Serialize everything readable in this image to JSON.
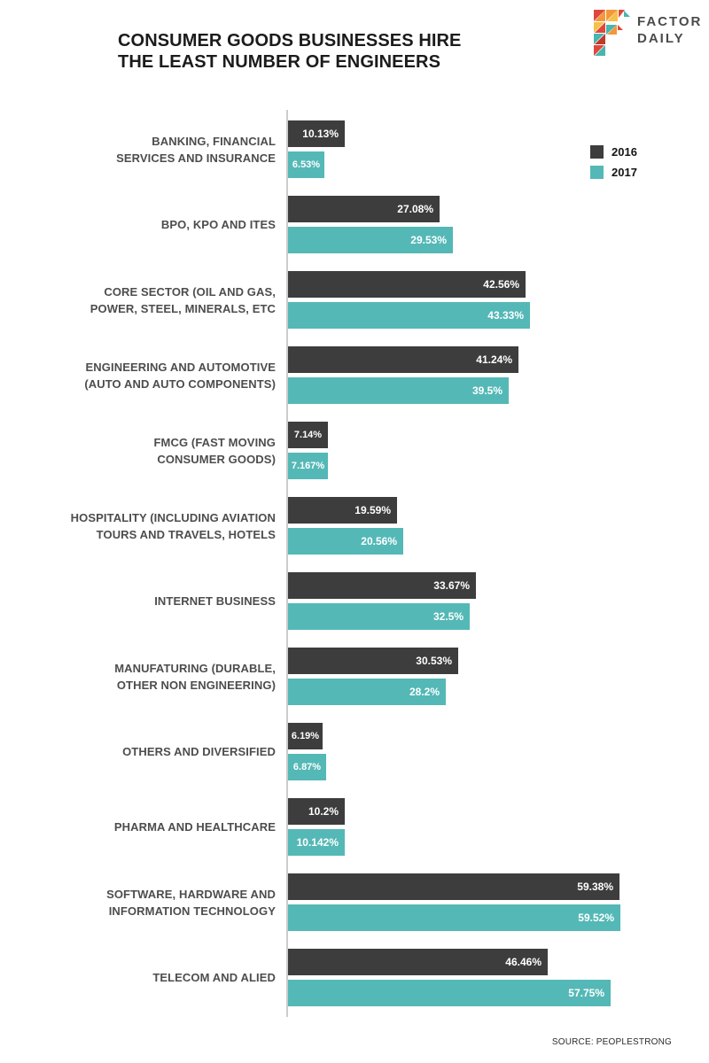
{
  "header": {
    "title_line1": "CONSUMER GOODS BUSINESSES HIRE",
    "title_line2": "THE LEAST NUMBER OF ENGINEERS",
    "logo_line1": "FACTOR",
    "logo_line2": "DAILY"
  },
  "legend": {
    "items": [
      {
        "label": "2016",
        "color": "#3d3d3d"
      },
      {
        "label": "2017",
        "color": "#54b8b6"
      }
    ]
  },
  "chart_data": {
    "type": "bar",
    "orientation": "horizontal",
    "title": "CONSUMER GOODS BUSINESSES HIRE THE LEAST NUMBER OF ENGINEERS",
    "categories": [
      "BANKING, FINANCIAL\nSERVICES AND INSURANCE",
      "BPO, KPO AND ITES",
      "CORE SECTOR (OIL AND GAS,\nPOWER, STEEL, MINERALS, ETC",
      "ENGINEERING AND AUTOMOTIVE\n(AUTO AND AUTO COMPONENTS)",
      "FMCG (FAST MOVING\nCONSUMER GOODS)",
      "HOSPITALITY (INCLUDING AVIATION\nTOURS AND TRAVELS, HOTELS",
      "INTERNET BUSINESS",
      "MANUFATURING (DURABLE,\nOTHER NON ENGINEERING)",
      "OTHERS AND DIVERSIFIED",
      "PHARMA AND HEALTHCARE",
      "SOFTWARE, HARDWARE AND\nINFORMATION TECHNOLOGY",
      "TELECOM AND ALIED"
    ],
    "series": [
      {
        "name": "2016",
        "color": "#3d3d3d",
        "values": [
          10.13,
          27.08,
          42.56,
          41.24,
          7.14,
          19.59,
          33.67,
          30.53,
          6.19,
          10.2,
          59.38,
          46.46
        ]
      },
      {
        "name": "2017",
        "color": "#54b8b6",
        "values": [
          6.53,
          29.53,
          43.33,
          39.5,
          7.167,
          20.56,
          32.5,
          28.2,
          6.87,
          10.142,
          59.52,
          57.75
        ]
      }
    ],
    "value_suffix": "%",
    "xlim": [
      0,
      62
    ],
    "grid": false,
    "legend_position": "top-right",
    "axis_color": "#cccccc",
    "value_labels_inside_bars": true
  },
  "footer": {
    "source": "SOURCE: PEOPLESTRONG"
  }
}
